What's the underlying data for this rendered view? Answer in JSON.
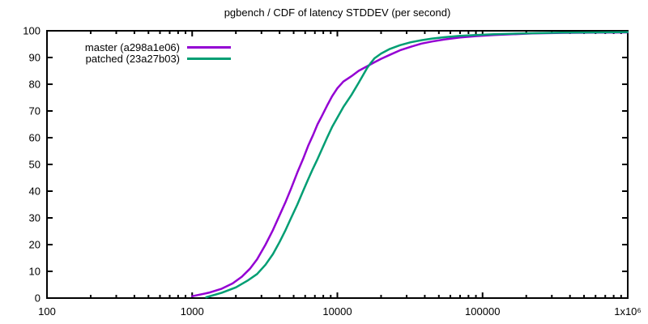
{
  "chart_data": {
    "type": "line",
    "title": "pgbench / CDF of latency STDDEV (per second)",
    "xlabel": "",
    "ylabel": "",
    "x_scale": "log",
    "xlim": [
      100,
      1000000
    ],
    "ylim": [
      0,
      100
    ],
    "grid": false,
    "legend_position": "top-left-inside",
    "x_major_ticks": [
      100,
      1000,
      10000,
      100000,
      1000000
    ],
    "x_tick_labels": [
      "100",
      "1000",
      "10000",
      "100000",
      "1x10⁶"
    ],
    "y_major_ticks": [
      0,
      10,
      20,
      30,
      40,
      50,
      60,
      70,
      80,
      90,
      100
    ],
    "y_tick_labels": [
      "0",
      "10",
      "20",
      "30",
      "40",
      "50",
      "60",
      "70",
      "80",
      "90",
      "100"
    ],
    "series": [
      {
        "name": "master (a298a1e06)",
        "color": "#9400d3",
        "points": [
          [
            1000,
            0.7
          ],
          [
            1300,
            2
          ],
          [
            1600,
            3.5
          ],
          [
            1900,
            5.5
          ],
          [
            2200,
            8
          ],
          [
            2500,
            11
          ],
          [
            2800,
            14.5
          ],
          [
            3200,
            20
          ],
          [
            3600,
            25.5
          ],
          [
            4000,
            31
          ],
          [
            4400,
            36
          ],
          [
            4800,
            41
          ],
          [
            5300,
            47
          ],
          [
            5800,
            52
          ],
          [
            6300,
            57
          ],
          [
            6800,
            61
          ],
          [
            7300,
            65
          ],
          [
            7800,
            68
          ],
          [
            8500,
            72
          ],
          [
            9200,
            75.5
          ],
          [
            10000,
            78.5
          ],
          [
            11000,
            81
          ],
          [
            12500,
            83
          ],
          [
            14000,
            85
          ],
          [
            16000,
            86.7
          ],
          [
            18000,
            88.2
          ],
          [
            20000,
            89.5
          ],
          [
            23000,
            91
          ],
          [
            27000,
            92.7
          ],
          [
            32000,
            94
          ],
          [
            38000,
            95.2
          ],
          [
            45000,
            96
          ],
          [
            55000,
            96.8
          ],
          [
            70000,
            97.5
          ],
          [
            90000,
            98
          ],
          [
            120000,
            98.4
          ],
          [
            160000,
            98.7
          ],
          [
            220000,
            99
          ],
          [
            350000,
            99.2
          ],
          [
            600000,
            99.3
          ],
          [
            1000000,
            99.4
          ]
        ]
      },
      {
        "name": "patched (23a27b03)",
        "color": "#009e73",
        "points": [
          [
            1250,
            0.3
          ],
          [
            1600,
            2
          ],
          [
            2000,
            4
          ],
          [
            2400,
            6.5
          ],
          [
            2800,
            9
          ],
          [
            3200,
            12.5
          ],
          [
            3600,
            16.5
          ],
          [
            4000,
            21
          ],
          [
            4400,
            25.5
          ],
          [
            4800,
            30
          ],
          [
            5300,
            35
          ],
          [
            5800,
            40
          ],
          [
            6300,
            44.5
          ],
          [
            6800,
            48.5
          ],
          [
            7300,
            52
          ],
          [
            7800,
            55.5
          ],
          [
            8500,
            60
          ],
          [
            9200,
            64
          ],
          [
            10000,
            67.5
          ],
          [
            11000,
            71.5
          ],
          [
            12500,
            76
          ],
          [
            14000,
            80.5
          ],
          [
            16000,
            86
          ],
          [
            17000,
            88
          ],
          [
            18000,
            89.7
          ],
          [
            20000,
            91.5
          ],
          [
            23000,
            93.2
          ],
          [
            27000,
            94.6
          ],
          [
            32000,
            95.7
          ],
          [
            38000,
            96.5
          ],
          [
            45000,
            97.1
          ],
          [
            55000,
            97.6
          ],
          [
            70000,
            98.1
          ],
          [
            90000,
            98.4
          ],
          [
            120000,
            98.7
          ],
          [
            160000,
            98.9
          ],
          [
            220000,
            99.1
          ],
          [
            350000,
            99.3
          ],
          [
            600000,
            99.4
          ],
          [
            1000000,
            99.5
          ]
        ]
      }
    ],
    "colors": {
      "background": "#ffffff",
      "axis": "#000000",
      "text": "#000000"
    }
  }
}
